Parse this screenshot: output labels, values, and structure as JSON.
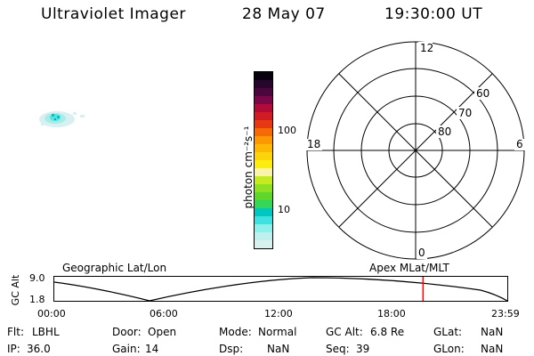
{
  "header": {
    "instrument": "Ultraviolet Imager",
    "date": "28 May 07",
    "time": "19:30:00 UT"
  },
  "colorbar": {
    "unit_label": "photon cm⁻²s⁻¹",
    "ticks": [
      "100",
      "10"
    ],
    "colors": [
      "#d8f0f0",
      "#c0f0ee",
      "#8ef0ea",
      "#3fe0e0",
      "#00c8c0",
      "#34d65c",
      "#5ed62c",
      "#8ee024",
      "#c4ea20",
      "#f8f4a8",
      "#fcec10",
      "#fcd40c",
      "#fcb804",
      "#fc9804",
      "#f66a06",
      "#e63812",
      "#d01c24",
      "#b20c36",
      "#7a0848",
      "#4c063e",
      "#26062a",
      "#08020e"
    ]
  },
  "polar_grid": {
    "mlt_labels": [
      "12",
      "18",
      "6",
      "0"
    ],
    "lat_labels": [
      "60",
      "70",
      "80"
    ]
  },
  "timeline": {
    "left_title": "Geographic Lat/Lon",
    "right_title": "Apex MLat/MLT",
    "y_label": "GC Alt",
    "y_ticks": [
      "9.0",
      "1.8"
    ],
    "x_ticks": [
      "00:00",
      "06:00",
      "12:00",
      "18:00",
      "23:59"
    ],
    "marker_color": "#ff0000",
    "marker_hour": 19.5
  },
  "status": {
    "flt_label": "Flt:",
    "flt_value": "LBHL",
    "ip_label": "IP:",
    "ip_value": "36.0",
    "door_label": "Door:",
    "door_value": "Open",
    "gain_label": "Gain:",
    "gain_value": "14",
    "mode_label": "Mode:",
    "mode_value": "Normal",
    "dsp_label": "Dsp:",
    "dsp_value": "NaN",
    "gcalt_label": "GC Alt:",
    "gcalt_value": "6.8 Re",
    "seq_label": "Seq:",
    "seq_value": "39",
    "glat_label": "GLat:",
    "glat_value": "NaN",
    "glon_label": "GLon:",
    "glon_value": "NaN"
  }
}
